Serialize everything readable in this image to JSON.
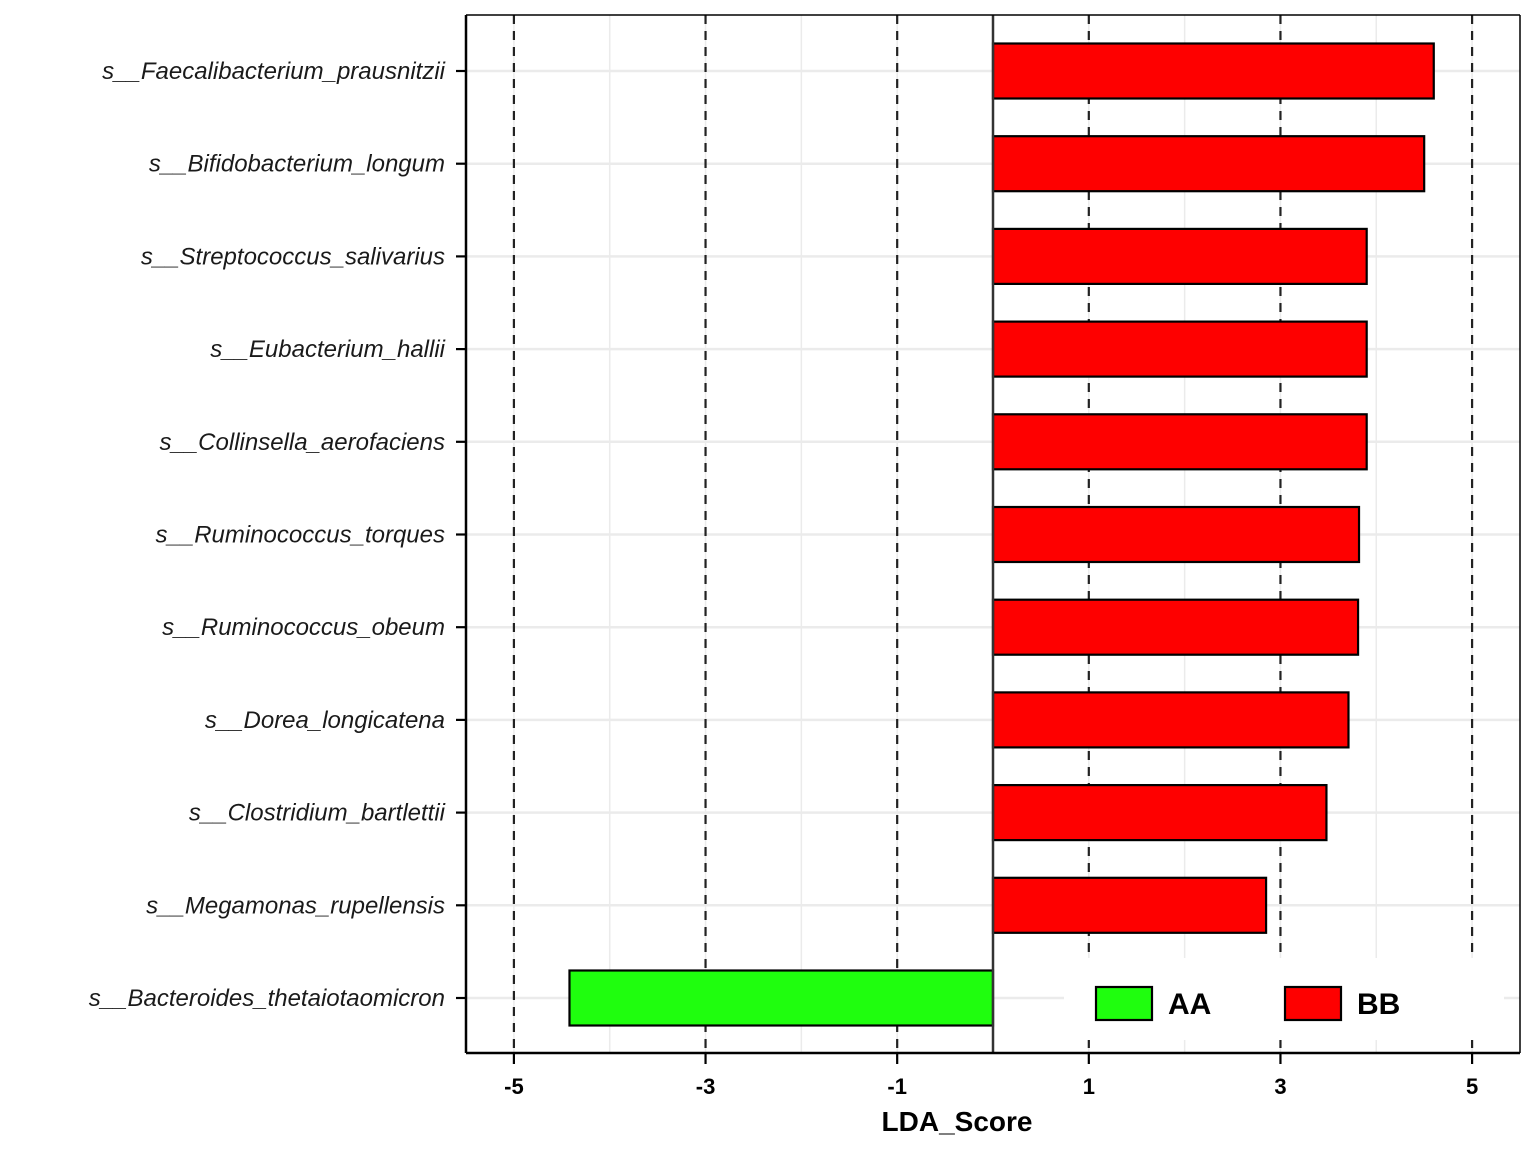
{
  "chart_data": {
    "type": "bar",
    "orientation": "horizontal",
    "categories": [
      "s__Faecalibacterium_prausnitzii",
      "s__Bifidobacterium_longum",
      "s__Streptococcus_salivarius",
      "s__Eubacterium_hallii",
      "s__Collinsella_aerofaciens",
      "s__Ruminococcus_torques",
      "s__Ruminococcus_obeum",
      "s__Dorea_longicatena",
      "s__Clostridium_bartlettii",
      "s__Megamonas_rupellensis",
      "s__Bacteroides_thetaiotaomicron"
    ],
    "values": [
      4.6,
      4.5,
      3.9,
      3.9,
      3.9,
      3.82,
      3.81,
      3.71,
      3.48,
      2.85,
      -4.42
    ],
    "groups": [
      "BB",
      "BB",
      "BB",
      "BB",
      "BB",
      "BB",
      "BB",
      "BB",
      "BB",
      "BB",
      "AA"
    ],
    "xlabel": "LDA_Score",
    "ylabel": "",
    "xlim": [
      -5.5,
      5.5
    ],
    "xticks": [
      -5,
      -3,
      -1,
      1,
      3,
      5
    ],
    "xtick_labels": [
      "-5",
      "-3",
      "-1",
      "1",
      "3",
      "5"
    ],
    "reference_lines": [
      -5,
      -3,
      -1,
      1,
      3,
      5
    ],
    "legend": {
      "placement": "bottom-right",
      "items": [
        {
          "label": "AA",
          "color": "#1ffe0e"
        },
        {
          "label": "BB",
          "color": "#fe0000"
        }
      ]
    },
    "colors": {
      "AA": "#1ffe0e",
      "BB": "#fe0000"
    },
    "grid": true
  }
}
